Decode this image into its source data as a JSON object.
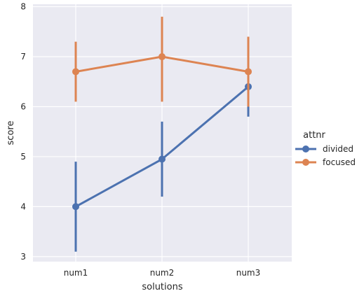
{
  "chart_data": {
    "type": "line",
    "title": "",
    "xlabel": "solutions",
    "ylabel": "score",
    "categories": [
      "num1",
      "num2",
      "num3"
    ],
    "ylim": [
      2.9,
      8.05
    ],
    "yticks": [
      3,
      4,
      5,
      6,
      7,
      8
    ],
    "grid": true,
    "legend_title": "attnr",
    "legend_position": "right",
    "series": [
      {
        "name": "divided",
        "color": "#4c72b0",
        "values": [
          4.0,
          4.95,
          6.4
        ],
        "ci_low": [
          3.1,
          4.2,
          5.8
        ],
        "ci_high": [
          4.9,
          5.7,
          7.0
        ]
      },
      {
        "name": "focused",
        "color": "#dd8452",
        "values": [
          6.7,
          7.0,
          6.7
        ],
        "ci_low": [
          6.1,
          6.1,
          6.0
        ],
        "ci_high": [
          7.3,
          7.8,
          7.4
        ]
      }
    ]
  }
}
